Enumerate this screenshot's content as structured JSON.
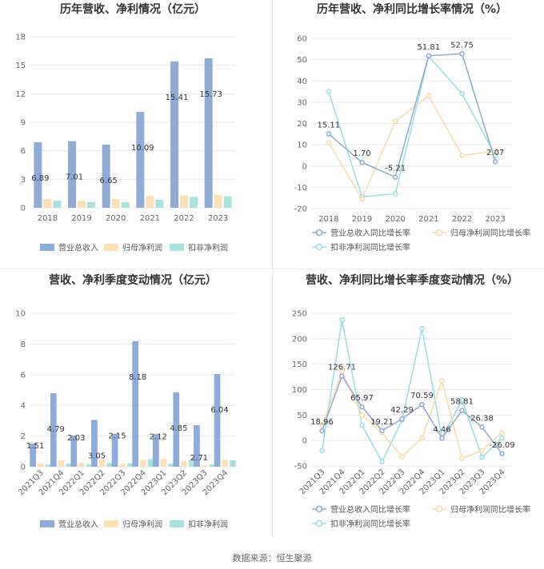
{
  "source": "数据来源：恒生聚源",
  "colors": {
    "revenue_bar": "#8eacd9",
    "net_bar": "#fde1b4",
    "deducted_bar": "#a6e3e0",
    "revenue_line": "#8fa9d2",
    "net_line": "#fad9a6",
    "deducted_line": "#95dfe0",
    "grid": "#e8e8e8",
    "axis_text": "#666666"
  },
  "chart_data": [
    {
      "type": "bar",
      "title": "历年营收、净利情况（亿元）",
      "categories": [
        "2018",
        "2019",
        "2020",
        "2021",
        "2022",
        "2023"
      ],
      "ylim": [
        0,
        18
      ],
      "yticks": [
        0,
        3,
        6,
        9,
        12,
        15,
        18
      ],
      "series": [
        {
          "name": "营业总收入",
          "values": [
            6.89,
            7.01,
            6.65,
            10.09,
            15.41,
            15.73
          ],
          "labeled": true
        },
        {
          "name": "归母净利润",
          "values": [
            0.92,
            0.72,
            0.92,
            1.25,
            1.32,
            1.36
          ],
          "labeled": false
        },
        {
          "name": "扣非净利润",
          "values": [
            0.75,
            0.61,
            0.58,
            0.85,
            1.15,
            1.2
          ],
          "labeled": false
        }
      ],
      "data_labels": [
        "6.89",
        "7.01",
        "6.65",
        "10.09",
        "15.41",
        "15.73"
      ],
      "legend_position": "bottom"
    },
    {
      "type": "line",
      "title": "历年营收、净利同比增长率情况（%）",
      "categories": [
        "2018",
        "2019",
        "2020",
        "2021",
        "2022",
        "2023"
      ],
      "ylim": [
        -20,
        60
      ],
      "yticks": [
        -20,
        -10,
        0,
        10,
        20,
        30,
        40,
        50,
        60
      ],
      "series": [
        {
          "name": "营业总收入同比增长率",
          "values": [
            15.11,
            1.7,
            -5.21,
            51.81,
            52.75,
            2.07
          ],
          "labeled": true
        },
        {
          "name": "归母净利润同比增长率",
          "values": [
            11,
            -15.5,
            21,
            33,
            5,
            7
          ],
          "labeled": false
        },
        {
          "name": "扣非净利润同比增长率",
          "values": [
            35,
            -14.5,
            -13,
            51.5,
            34,
            5
          ],
          "labeled": false
        }
      ],
      "data_labels": [
        "15.11",
        "1.70",
        "-5.21",
        "51.81",
        "52.75",
        "2.07"
      ],
      "legend_position": "bottom"
    },
    {
      "type": "bar",
      "title": "营收、净利季度变动情况（亿元）",
      "categories": [
        "2021Q3",
        "2021Q4",
        "2022Q1",
        "2022Q2",
        "2022Q3",
        "2022Q4",
        "2023Q1",
        "2023Q2",
        "2023Q3",
        "2023Q4"
      ],
      "ylim": [
        0,
        10
      ],
      "yticks": [
        0,
        2,
        4,
        6,
        8,
        10
      ],
      "series": [
        {
          "name": "营业总收入",
          "values": [
            1.51,
            4.79,
            2.03,
            3.05,
            2.15,
            8.18,
            2.12,
            4.85,
            2.71,
            6.04
          ],
          "labeled": true
        },
        {
          "name": "归母净利润",
          "values": [
            0.2,
            0.42,
            0.25,
            0.45,
            0.2,
            0.45,
            0.5,
            0.35,
            0.1,
            0.45
          ],
          "labeled": false
        },
        {
          "name": "扣非净利润",
          "values": [
            0.15,
            0.2,
            0.18,
            0.25,
            0.22,
            0.5,
            0.2,
            0.45,
            0.15,
            0.42
          ],
          "labeled": false
        }
      ],
      "data_labels": [
        "1.51",
        "4.79",
        "2.03",
        "3.05",
        "2.15",
        "8.18",
        "2.12",
        "4.85",
        "2.71",
        "6.04"
      ],
      "legend_position": "bottom"
    },
    {
      "type": "line",
      "title": "营收、净利同比增长率季度变动情况（%）",
      "categories": [
        "2021Q3",
        "2021Q4",
        "2022Q1",
        "2022Q2",
        "2022Q3",
        "2022Q4",
        "2023Q1",
        "2023Q2",
        "2023Q3",
        "2023Q4"
      ],
      "ylim": [
        -50,
        250
      ],
      "yticks": [
        -50,
        0,
        50,
        100,
        150,
        200,
        250
      ],
      "series": [
        {
          "name": "营业总收入同比增长率",
          "values": [
            18.96,
            126.71,
            65.97,
            19.21,
            42.29,
            70.59,
            4.46,
            58.81,
            26.38,
            -26.09
          ],
          "labeled": true
        },
        {
          "name": "归母净利润同比增长率",
          "values": [
            30,
            135,
            50,
            15,
            -32,
            5,
            117,
            -35,
            -20,
            15
          ],
          "labeled": false
        },
        {
          "name": "扣非净利润同比增长率",
          "values": [
            -20,
            237,
            30,
            -42,
            40,
            220,
            5,
            80,
            -33,
            5
          ],
          "labeled": false
        }
      ],
      "data_labels": [
        "18.96",
        "126.71",
        "65.97",
        "19.21",
        "42.29",
        "70.59",
        "4.46",
        "58.81",
        "26.38",
        "-26.09"
      ],
      "legend_position": "bottom"
    }
  ]
}
